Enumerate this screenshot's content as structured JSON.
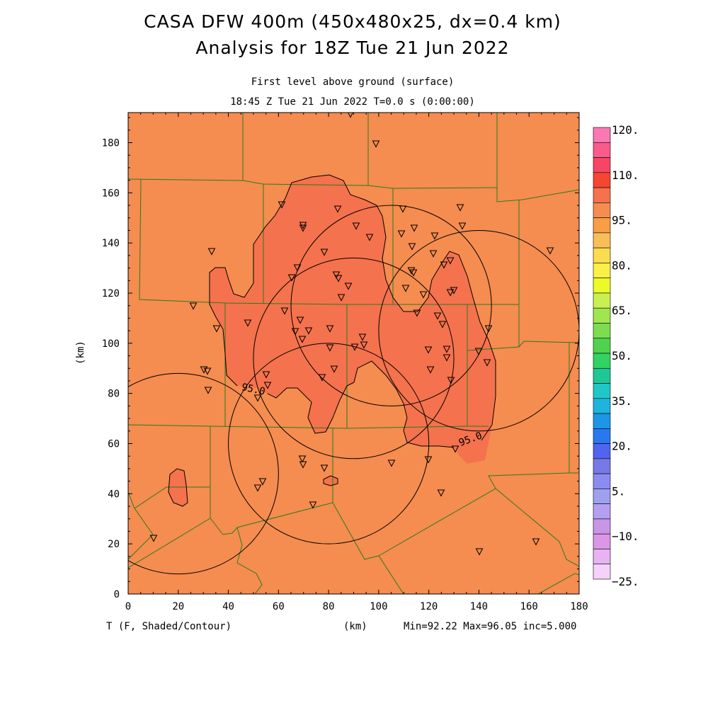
{
  "title_line1": "CASA DFW 400m (450x480x25, dx=0.4 km)",
  "title_line2": "Analysis for 18Z Tue 21 Jun 2022",
  "subtitle_line1": "First level above ground (surface)",
  "subtitle_line2": "18:45 Z Tue 21 Jun 2022    T=0.0 s (0:00:00)",
  "ylabel": "(km)",
  "xlabel": "(km)",
  "variable_label": "T (F, Shaded/Contour)",
  "stats_label": "Min=92.22 Max=96.05 inc=5.000",
  "contour_label": "95.0",
  "colors": {
    "base_fill": "#f58c50",
    "warm_fill": "#f4724d",
    "county_lines": "#2d7a1e",
    "contour": "#000000"
  },
  "x_ticks": [
    "0",
    "20",
    "40",
    "60",
    "80",
    "100",
    "120",
    "140",
    "160",
    "180"
  ],
  "y_ticks": [
    "0",
    "20",
    "40",
    "60",
    "80",
    "100",
    "120",
    "140",
    "160",
    "180"
  ],
  "colorbar": {
    "labels": [
      "120.",
      "110.",
      "95.",
      "80.",
      "65.",
      "50.",
      "35.",
      "20.",
      "5.",
      "−10.",
      "−25."
    ],
    "colors": [
      "#fa78b4",
      "#fa5a8c",
      "#f54664",
      "#f54632",
      "#f4724d",
      "#f58c50",
      "#f79e46",
      "#f8be5a",
      "#fadc50",
      "#f9f048",
      "#ebfa28",
      "#c8f050",
      "#a0e650",
      "#7ddc50",
      "#50d250",
      "#32d264",
      "#1ec896",
      "#1ec8c8",
      "#1eb4dc",
      "#1e96e6",
      "#2878f0",
      "#5064f0",
      "#7878e6",
      "#8c8cf0",
      "#a0a0f0",
      "#b4a0f0",
      "#c896e6",
      "#dc96e6",
      "#e6b4f0",
      "#f5d2fa"
    ]
  },
  "chart_data": {
    "type": "heatmap",
    "variable": "T (F, Shaded/Contour)",
    "xlabel": "(km)",
    "ylabel": "(km)",
    "xlim": [
      0,
      180
    ],
    "ylim": [
      0,
      192
    ],
    "min": 92.22,
    "max": 96.05,
    "contour_increment": 5.0,
    "contour_levels": [
      95.0
    ],
    "radar_rings": [
      {
        "center_km": [
          20,
          48
        ],
        "radius_km": 40
      },
      {
        "center_km": [
          80,
          60
        ],
        "radius_km": 40
      },
      {
        "center_km": [
          90,
          94
        ],
        "radius_km": 40
      },
      {
        "center_km": [
          105,
          115
        ],
        "radius_km": 40
      },
      {
        "center_km": [
          140,
          105
        ],
        "radius_km": 40
      }
    ]
  }
}
